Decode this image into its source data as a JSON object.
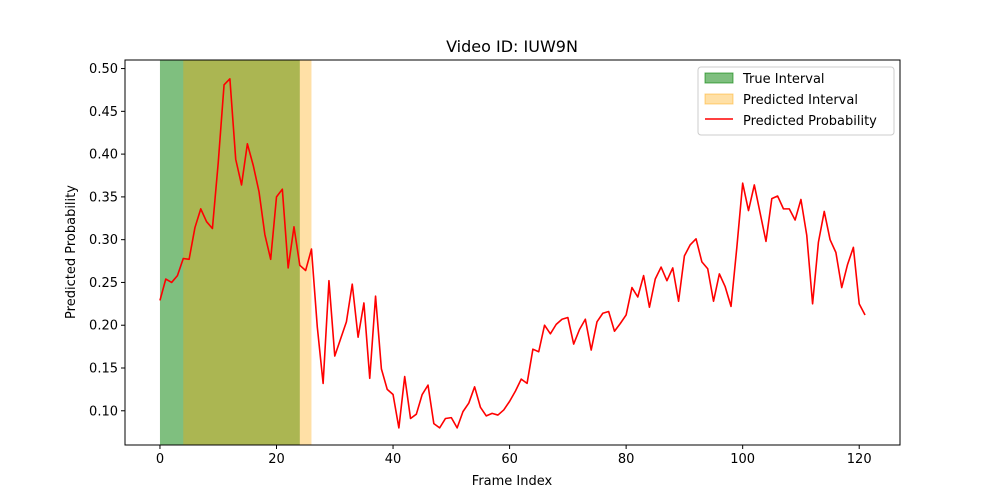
{
  "chart_data": {
    "type": "line",
    "title": "Video ID: IUW9N",
    "xlabel": "Frame Index",
    "ylabel": "Predicted Probability",
    "xlim": [
      -6,
      127
    ],
    "ylim": [
      0.06,
      0.51
    ],
    "xticks": [
      0,
      20,
      40,
      60,
      80,
      100,
      120
    ],
    "xtick_labels": [
      "0",
      "20",
      "40",
      "60",
      "80",
      "100",
      "120"
    ],
    "yticks": [
      0.1,
      0.15,
      0.2,
      0.25,
      0.3,
      0.35,
      0.4,
      0.45,
      0.5
    ],
    "ytick_labels": [
      "0.10",
      "0.15",
      "0.20",
      "0.25",
      "0.30",
      "0.35",
      "0.40",
      "0.45",
      "0.50"
    ],
    "grid": false,
    "legend_position": "top-right",
    "intervals": [
      {
        "name": "True Interval",
        "start": 0,
        "end": 24,
        "color": "#008000",
        "opacity": 0.5
      },
      {
        "name": "Predicted Interval",
        "start": 4,
        "end": 26,
        "color": "#ffa500",
        "opacity": 0.35
      }
    ],
    "series": [
      {
        "name": "Predicted Probability",
        "color": "#ff0000",
        "x": [
          0,
          1,
          2,
          3,
          4,
          5,
          6,
          7,
          8,
          9,
          10,
          11,
          12,
          13,
          14,
          15,
          16,
          17,
          18,
          19,
          20,
          21,
          22,
          23,
          24,
          25,
          26,
          27,
          28,
          29,
          30,
          31,
          32,
          33,
          34,
          35,
          36,
          37,
          38,
          39,
          40,
          41,
          42,
          43,
          44,
          45,
          46,
          47,
          48,
          49,
          50,
          51,
          52,
          53,
          54,
          55,
          56,
          57,
          58,
          59,
          60,
          61,
          62,
          63,
          64,
          65,
          66,
          67,
          68,
          69,
          70,
          71,
          72,
          73,
          74,
          75,
          76,
          77,
          78,
          79,
          80,
          81,
          82,
          83,
          84,
          85,
          86,
          87,
          88,
          89,
          90,
          91,
          92,
          93,
          94,
          95,
          96,
          97,
          98,
          99,
          100,
          101,
          102,
          103,
          104,
          105,
          106,
          107,
          108,
          109,
          110,
          111,
          112,
          113,
          114,
          115,
          116,
          117,
          118,
          119,
          120,
          121
        ],
        "values": [
          0.229,
          0.254,
          0.25,
          0.258,
          0.278,
          0.277,
          0.314,
          0.336,
          0.321,
          0.313,
          0.39,
          0.481,
          0.488,
          0.394,
          0.364,
          0.412,
          0.387,
          0.356,
          0.306,
          0.277,
          0.35,
          0.359,
          0.267,
          0.315,
          0.27,
          0.264,
          0.289,
          0.198,
          0.132,
          0.252,
          0.164,
          0.184,
          0.204,
          0.248,
          0.186,
          0.226,
          0.138,
          0.234,
          0.149,
          0.125,
          0.119,
          0.08,
          0.14,
          0.091,
          0.096,
          0.119,
          0.13,
          0.085,
          0.08,
          0.091,
          0.092,
          0.08,
          0.099,
          0.109,
          0.128,
          0.104,
          0.094,
          0.097,
          0.095,
          0.101,
          0.111,
          0.123,
          0.137,
          0.132,
          0.172,
          0.169,
          0.2,
          0.19,
          0.201,
          0.207,
          0.209,
          0.178,
          0.195,
          0.207,
          0.171,
          0.204,
          0.214,
          0.216,
          0.193,
          0.202,
          0.212,
          0.244,
          0.233,
          0.258,
          0.221,
          0.254,
          0.268,
          0.252,
          0.267,
          0.228,
          0.281,
          0.294,
          0.301,
          0.274,
          0.266,
          0.228,
          0.26,
          0.245,
          0.222,
          0.291,
          0.366,
          0.334,
          0.364,
          0.331,
          0.298,
          0.348,
          0.351,
          0.336,
          0.336,
          0.323,
          0.347,
          0.305,
          0.225,
          0.297,
          0.333,
          0.3,
          0.285,
          0.244,
          0.271,
          0.291,
          0.225,
          0.212
        ]
      }
    ]
  }
}
